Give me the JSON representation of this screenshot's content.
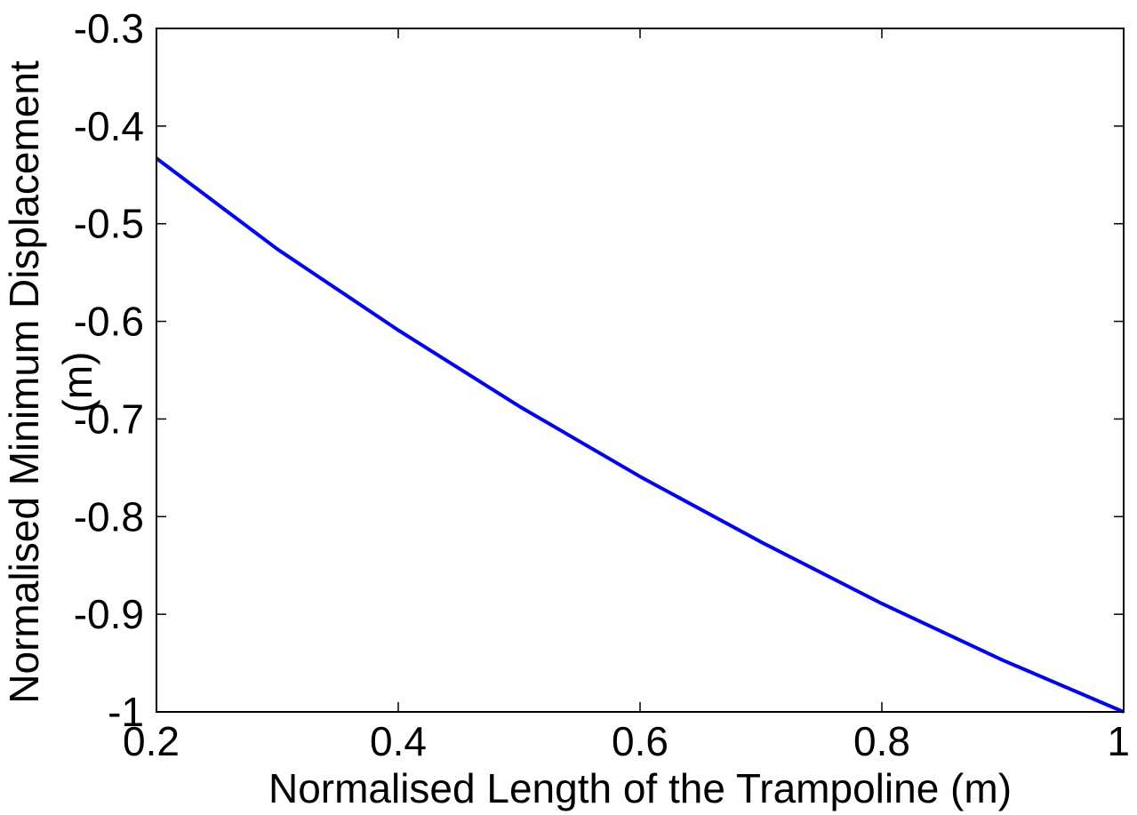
{
  "chart_data": {
    "type": "line",
    "title": "",
    "xlabel": "Normalised Length of the Trampoline (m)",
    "ylabel_line1": "Normalised Minimum Displacement",
    "ylabel_line2": "(m)",
    "xlim": [
      0.2,
      1.0
    ],
    "ylim": [
      -1.0,
      -0.3
    ],
    "xticks": [
      0.2,
      0.4,
      0.6,
      0.8,
      1.0
    ],
    "xtick_labels": [
      "0.2",
      "0.4",
      "0.6",
      "0.8",
      "1"
    ],
    "yticks": [
      -0.3,
      -0.4,
      -0.5,
      -0.6,
      -0.7,
      -0.8,
      -0.9,
      -1.0
    ],
    "ytick_labels": [
      "-0.3",
      "-0.4",
      "-0.5",
      "-0.6",
      "-0.7",
      "-0.8",
      "-0.9",
      "-1"
    ],
    "grid": false,
    "legend": "none",
    "series": [
      {
        "color": "#0000ff",
        "x": [
          0.2,
          0.3,
          0.4,
          0.5,
          0.6,
          0.7,
          0.8,
          0.9,
          1.0
        ],
        "y": [
          -0.433,
          -0.526,
          -0.609,
          -0.687,
          -0.759,
          -0.826,
          -0.889,
          -0.947,
          -1.0
        ]
      }
    ]
  }
}
